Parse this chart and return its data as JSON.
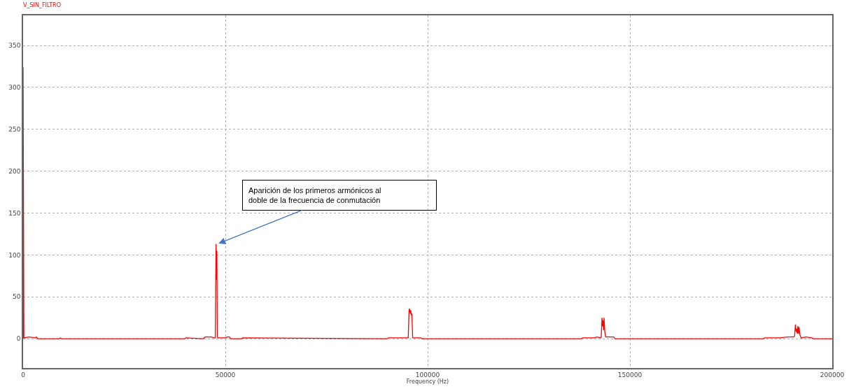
{
  "chart_data": {
    "type": "line",
    "title": "V_SIN_FILTRO",
    "xlabel": "Frequency (Hz)",
    "x": [
      0,
      0,
      200,
      1500,
      3000,
      3300,
      3600,
      9000,
      9200,
      9400,
      40000,
      40200,
      44500,
      45000,
      46500,
      47200,
      47500,
      47600,
      47700,
      47800,
      47900,
      48000,
      48200,
      49000,
      50000,
      50500,
      51000,
      51300,
      54000,
      54200,
      90000,
      90300,
      92000,
      93000,
      95200,
      95400,
      95500,
      95700,
      95800,
      96000,
      96100,
      96300,
      96500,
      98000,
      98300,
      98600,
      138000,
      138300,
      141000,
      142000,
      142700,
      142900,
      143100,
      143200,
      143300,
      143500,
      143600,
      143800,
      144000,
      145000,
      146000,
      146300,
      183000,
      183300,
      187000,
      189000,
      190500,
      190700,
      190900,
      191100,
      191200,
      191400,
      191500,
      191700,
      191800,
      192000,
      192300,
      193500,
      195000,
      195300,
      200000
    ],
    "series": [
      {
        "color": "#ff0000",
        "values": [
          0,
          324,
          1,
          2,
          1,
          2,
          0,
          0,
          1,
          0,
          0,
          1,
          0,
          2,
          2,
          1,
          1,
          60,
          113,
          70,
          105,
          2,
          1,
          1,
          1,
          2,
          2,
          0,
          0,
          1,
          0,
          1,
          1,
          1,
          1,
          33,
          36,
          30,
          34,
          28,
          30,
          1,
          1,
          1,
          1,
          0,
          0,
          1,
          1,
          2,
          1,
          2,
          25,
          15,
          22,
          10,
          25,
          8,
          2,
          2,
          2,
          0,
          0,
          1,
          1,
          2,
          2,
          3,
          17,
          8,
          12,
          6,
          15,
          6,
          14,
          5,
          1,
          2,
          1,
          0,
          0
        ]
      }
    ],
    "xlim": [
      0,
      200000
    ],
    "ylim": [
      -35,
      386
    ],
    "xticks": [
      0,
      50000,
      100000,
      150000,
      200000
    ],
    "yticks": [
      0,
      50,
      100,
      150,
      200,
      250,
      300,
      350
    ],
    "grid": true,
    "marker": "none",
    "line_style": "solid",
    "annotations": [
      {
        "text": "Aparición de los primeros armónicos al doble de la frecuencia de conmutación",
        "x": 48000,
        "y": 113
      }
    ]
  }
}
